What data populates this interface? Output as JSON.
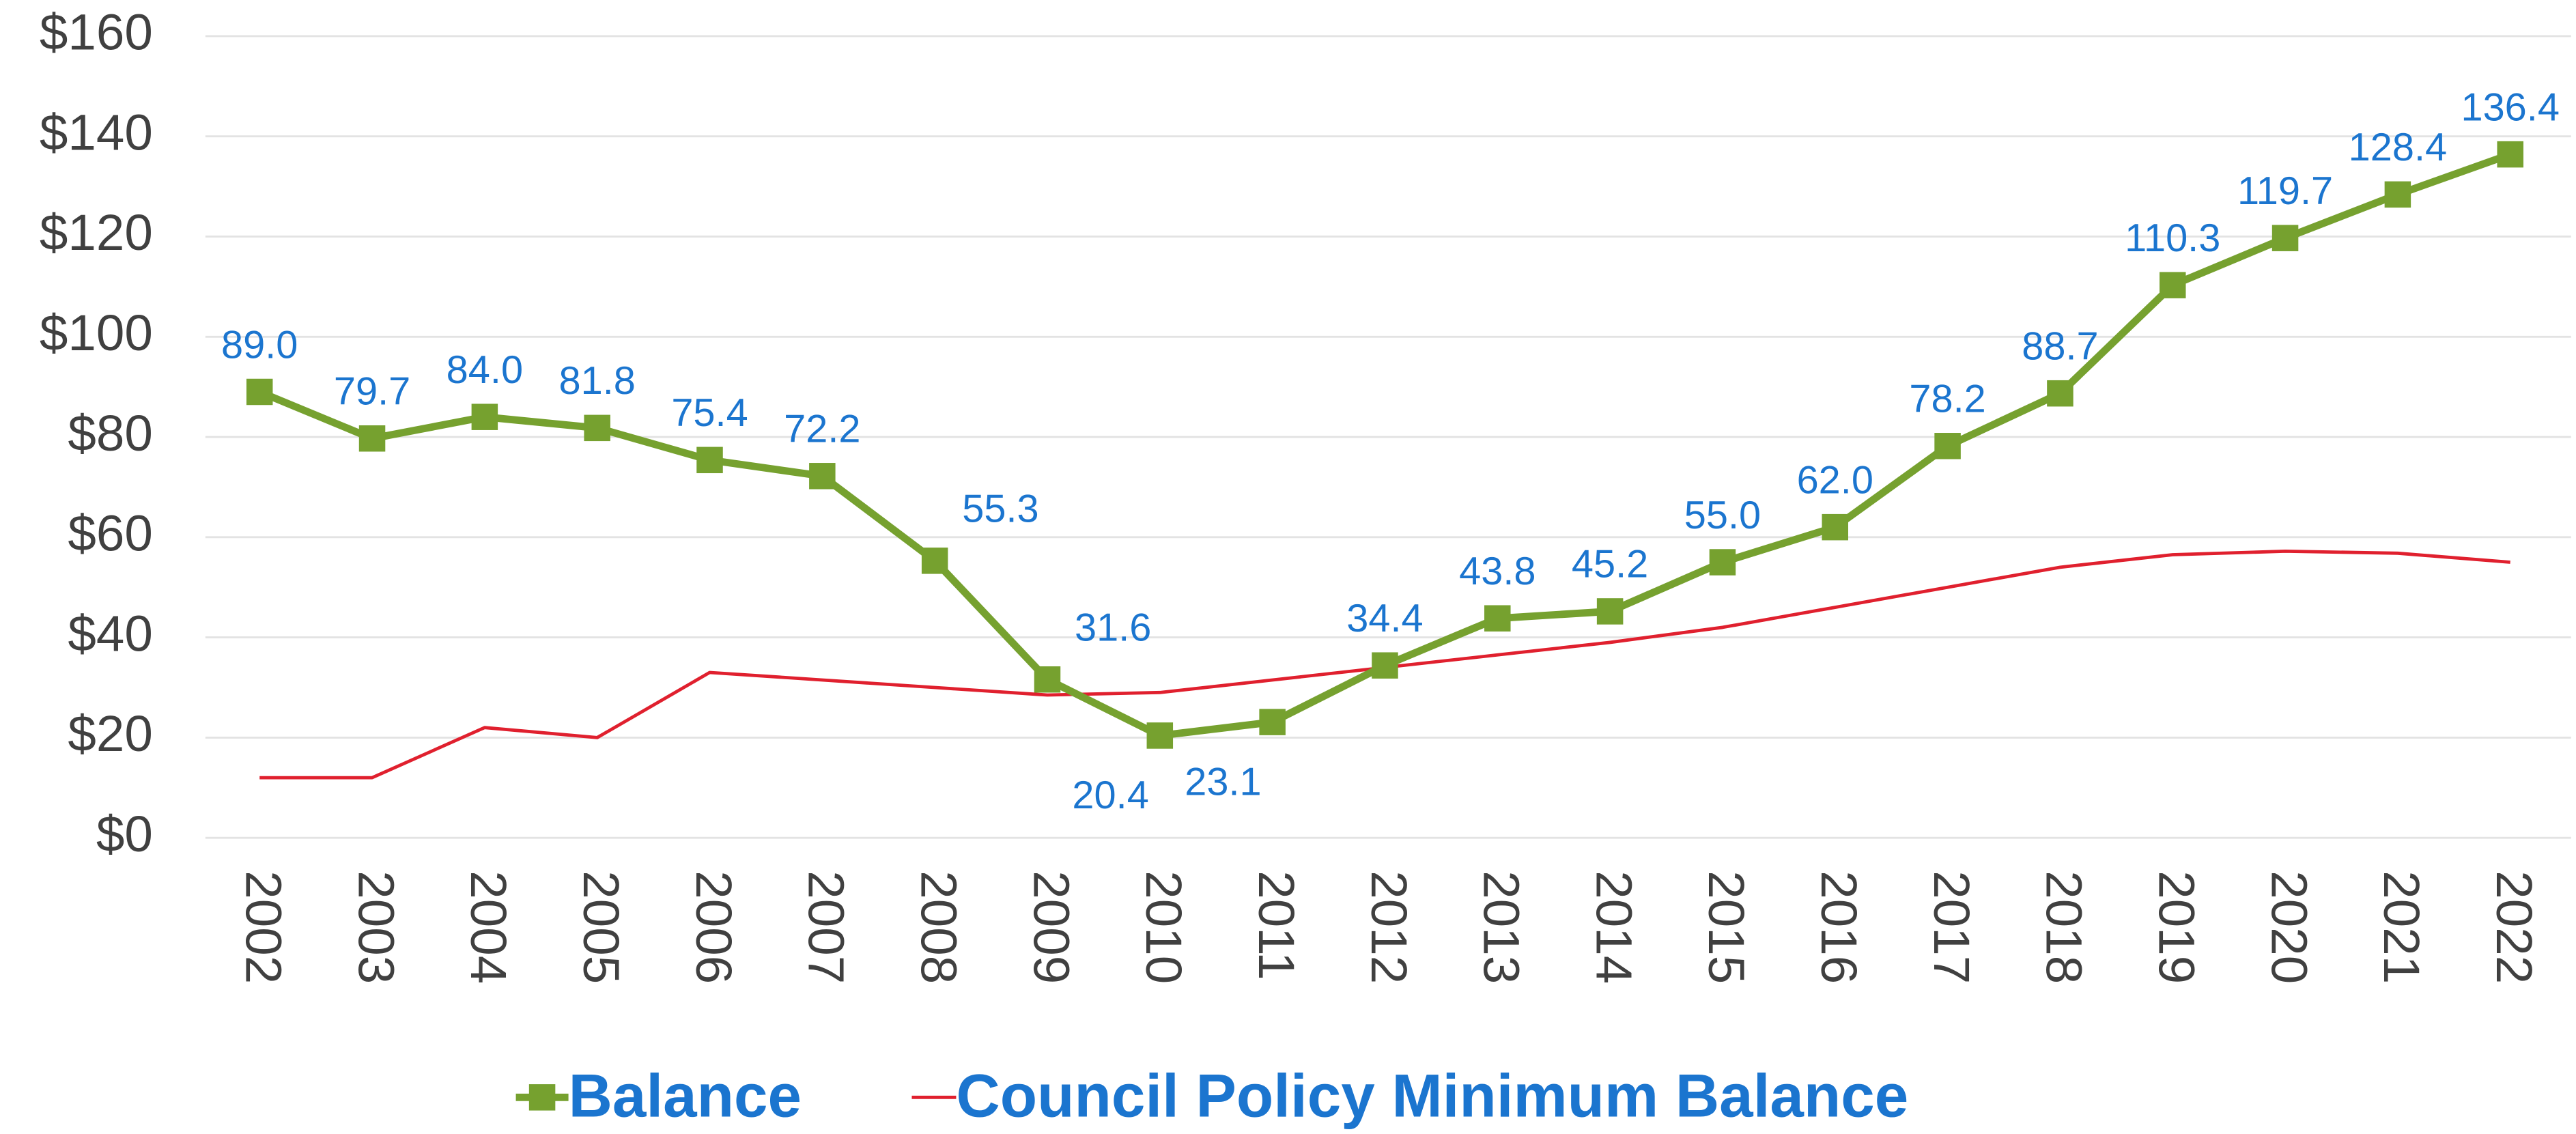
{
  "chart_data": {
    "type": "line",
    "categories": [
      "2002",
      "2003",
      "2004",
      "2005",
      "2006",
      "2007",
      "2008",
      "2009",
      "2010",
      "2011",
      "2012",
      "2013",
      "2014",
      "2015",
      "2016",
      "2017",
      "2018",
      "2019",
      "2020",
      "2021",
      "2022"
    ],
    "series": [
      {
        "name": "Balance",
        "color": "#76a12f",
        "values": [
          89.0,
          79.7,
          84.0,
          81.8,
          75.4,
          72.2,
          55.3,
          31.6,
          20.4,
          23.1,
          34.4,
          43.8,
          45.2,
          55.0,
          62.0,
          78.2,
          88.7,
          110.3,
          119.7,
          128.4,
          136.4
        ],
        "value_labels": [
          "89.0",
          "79.7",
          "84.0",
          "81.8",
          "75.4",
          "72.2",
          "55.3",
          "31.6",
          "20.4",
          "23.1",
          "34.4",
          "43.8",
          "45.2",
          "55.0",
          "62.0",
          "78.2",
          "88.7",
          "110.3",
          "119.7",
          "128.4",
          "136.4"
        ]
      },
      {
        "name": "Council Policy Minimum Balance",
        "color": "#e0202e",
        "values": [
          12,
          12,
          22,
          20,
          33,
          31.5,
          30,
          28.5,
          29,
          31.5,
          34,
          36.5,
          39,
          42,
          46,
          50,
          54,
          56.5,
          57.2,
          56.8,
          55
        ]
      }
    ],
    "ylim": [
      0,
      160
    ],
    "yticks": [
      {
        "value": 0,
        "label": "$0"
      },
      {
        "value": 20,
        "label": "$20"
      },
      {
        "value": 40,
        "label": "$40"
      },
      {
        "value": 60,
        "label": "$60"
      },
      {
        "value": 80,
        "label": "$80"
      },
      {
        "value": 100,
        "label": "$100"
      },
      {
        "value": 120,
        "label": "$120"
      },
      {
        "value": 140,
        "label": "$140"
      },
      {
        "value": 160,
        "label": "$160"
      }
    ],
    "grid": true,
    "legend": "bottom"
  }
}
